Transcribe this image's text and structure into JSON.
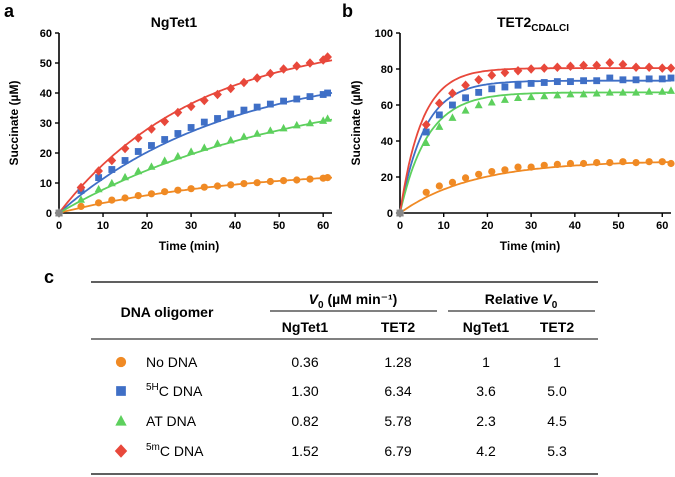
{
  "panel_labels": {
    "a": "a",
    "b": "b",
    "c": "c"
  },
  "colors": {
    "no_dna": "#F08A24",
    "5hc": "#3F6FC6",
    "at": "#5DD05D",
    "5mc": "#E8483B"
  },
  "chart_data": [
    {
      "type": "scatter",
      "title": "NgTet1",
      "xlabel": "Time (min)",
      "ylabel": "Succinate (µM)",
      "xlim": [
        0,
        62
      ],
      "ylim": [
        0,
        60
      ],
      "xticks": [
        "0",
        "10",
        "20",
        "30",
        "40",
        "50",
        "60"
      ],
      "yticks": [
        "0",
        "10",
        "20",
        "30",
        "40",
        "50",
        "60"
      ],
      "series": [
        {
          "name": "No DNA",
          "marker": "circle",
          "color": "#F08A24",
          "x": [
            0,
            5,
            9,
            12,
            15,
            18,
            21,
            24,
            27,
            30,
            33,
            36,
            39,
            42,
            45,
            48,
            51,
            54,
            57,
            60,
            61
          ],
          "y": [
            0,
            2.2,
            3.4,
            4.3,
            5.0,
            5.8,
            6.4,
            7.1,
            7.6,
            8.1,
            8.6,
            9.0,
            9.4,
            9.8,
            10.1,
            10.5,
            10.8,
            11.0,
            11.3,
            11.6,
            11.8
          ],
          "fit": {
            "plateau": 15.0,
            "k": 0.025
          }
        },
        {
          "name": "5HC DNA",
          "marker": "square",
          "color": "#3F6FC6",
          "x": [
            0,
            5,
            9,
            12,
            15,
            18,
            21,
            24,
            27,
            30,
            33,
            36,
            39,
            42,
            45,
            48,
            51,
            54,
            57,
            60,
            61
          ],
          "y": [
            0,
            7.5,
            11.8,
            14.5,
            17.5,
            20.5,
            22.5,
            24.5,
            26.5,
            28.5,
            30.3,
            31.5,
            33.0,
            34.3,
            35.3,
            36.3,
            37.3,
            38.0,
            38.8,
            39.5,
            40.0
          ],
          "fit": {
            "plateau": 50.0,
            "k": 0.026
          }
        },
        {
          "name": "AT DNA",
          "marker": "triangle",
          "color": "#5DD05D",
          "x": [
            0,
            5,
            9,
            12,
            15,
            18,
            21,
            24,
            27,
            30,
            33,
            36,
            39,
            42,
            45,
            48,
            51,
            54,
            57,
            60,
            61
          ],
          "y": [
            0,
            4.5,
            8.0,
            10.0,
            12.0,
            14.0,
            15.5,
            17.5,
            19.0,
            20.5,
            21.8,
            23.2,
            24.3,
            25.5,
            26.5,
            27.5,
            28.3,
            29.3,
            30.0,
            30.8,
            31.5
          ],
          "fit": {
            "plateau": 45.0,
            "k": 0.019
          }
        },
        {
          "name": "5mC DNA",
          "marker": "diamond",
          "color": "#E8483B",
          "x": [
            0,
            5,
            9,
            12,
            15,
            18,
            21,
            24,
            27,
            30,
            33,
            36,
            39,
            42,
            45,
            48,
            51,
            54,
            57,
            60,
            61
          ],
          "y": [
            0,
            8.5,
            14.0,
            17.5,
            21.5,
            25.0,
            28.0,
            30.5,
            33.5,
            35.5,
            37.5,
            39.5,
            41.5,
            43.5,
            45.0,
            46.5,
            48.0,
            49.0,
            50.0,
            51.0,
            52.0
          ],
          "fit": {
            "plateau": 59.0,
            "k": 0.032
          }
        }
      ]
    },
    {
      "type": "scatter",
      "title": "TET2",
      "title_subscript": "CDΔLCI",
      "xlabel": "Time (min)",
      "ylabel": "Succinate (µM)",
      "xlim": [
        0,
        62
      ],
      "ylim": [
        0,
        100
      ],
      "xticks": [
        "0",
        "10",
        "20",
        "30",
        "40",
        "50",
        "60"
      ],
      "yticks": [
        "0",
        "20",
        "40",
        "60",
        "80",
        "100"
      ],
      "series": [
        {
          "name": "No DNA",
          "marker": "circle",
          "color": "#F08A24",
          "x": [
            0,
            6,
            9,
            12,
            15,
            18,
            21,
            24,
            27,
            30,
            33,
            36,
            39,
            42,
            45,
            48,
            51,
            54,
            57,
            60,
            62
          ],
          "y": [
            0,
            11.5,
            15.0,
            17.0,
            19.5,
            21.5,
            23.0,
            24.0,
            25.5,
            25.5,
            26.5,
            27.0,
            27.5,
            27.5,
            28.0,
            28.0,
            28.5,
            28.0,
            28.5,
            28.5,
            27.5
          ],
          "fit": {
            "plateau": 29.0,
            "k": 0.06
          }
        },
        {
          "name": "5HC DNA",
          "marker": "square",
          "color": "#3F6FC6",
          "x": [
            0,
            6,
            9,
            12,
            15,
            18,
            21,
            24,
            27,
            30,
            33,
            36,
            39,
            42,
            45,
            48,
            51,
            54,
            57,
            60,
            62
          ],
          "y": [
            0,
            45.0,
            54.5,
            60.0,
            64.0,
            67.0,
            69.0,
            70.0,
            71.0,
            72.0,
            72.5,
            73.0,
            73.0,
            73.5,
            73.5,
            75.0,
            74.0,
            74.0,
            74.5,
            74.5,
            75.0
          ],
          "fit": {
            "plateau": 73.5,
            "k": 0.18
          }
        },
        {
          "name": "AT DNA",
          "marker": "triangle",
          "color": "#5DD05D",
          "x": [
            0,
            6,
            9,
            12,
            15,
            18,
            21,
            24,
            27,
            30,
            33,
            36,
            39,
            42,
            45,
            48,
            51,
            54,
            57,
            60,
            62
          ],
          "y": [
            0,
            39.0,
            48.0,
            53.0,
            57.0,
            60.0,
            61.5,
            63.0,
            64.0,
            64.5,
            65.0,
            65.5,
            66.0,
            66.0,
            66.5,
            67.0,
            67.0,
            67.0,
            67.5,
            67.5,
            68.0
          ],
          "fit": {
            "plateau": 67.0,
            "k": 0.16
          }
        },
        {
          "name": "5mC DNA",
          "marker": "diamond",
          "color": "#E8483B",
          "x": [
            0,
            6,
            9,
            12,
            15,
            18,
            21,
            24,
            27,
            30,
            33,
            36,
            39,
            42,
            45,
            48,
            51,
            54,
            57,
            60,
            62
          ],
          "y": [
            0,
            49.0,
            61.0,
            66.5,
            71.0,
            74.0,
            76.5,
            78.0,
            79.0,
            80.0,
            80.5,
            81.0,
            81.5,
            82.0,
            82.0,
            83.5,
            82.5,
            81.0,
            81.0,
            80.5,
            80.5
          ],
          "fit": {
            "plateau": 80.5,
            "k": 0.2
          }
        }
      ]
    }
  ],
  "table": {
    "col_oligomer": "DNA oligomer",
    "col_v0": "V",
    "v0_sub": "0",
    "v0_unit": " (µM min⁻¹)",
    "col_rel": "Relative ",
    "col_rel_v": "V",
    "col_rel_sub": "0",
    "sub_ngtet1": "NgTet1",
    "sub_tet2": "TET2",
    "rows": [
      {
        "marker": "circle",
        "color": "#F08A24",
        "sup": "",
        "label": "No DNA",
        "v_ng": "0.36",
        "v_tet2": "1.28",
        "r_ng": "1",
        "r_tet2": "1"
      },
      {
        "marker": "square",
        "color": "#3F6FC6",
        "sup": "5H",
        "label": "C DNA",
        "v_ng": "1.30",
        "v_tet2": "6.34",
        "r_ng": "3.6",
        "r_tet2": "5.0"
      },
      {
        "marker": "triangle",
        "color": "#5DD05D",
        "sup": "",
        "label": "AT DNA",
        "v_ng": "0.82",
        "v_tet2": "5.78",
        "r_ng": "2.3",
        "r_tet2": "4.5"
      },
      {
        "marker": "diamond",
        "color": "#E8483B",
        "sup": "5m",
        "label": "C DNA",
        "v_ng": "1.52",
        "v_tet2": "6.79",
        "r_ng": "4.2",
        "r_tet2": "5.3"
      }
    ]
  }
}
